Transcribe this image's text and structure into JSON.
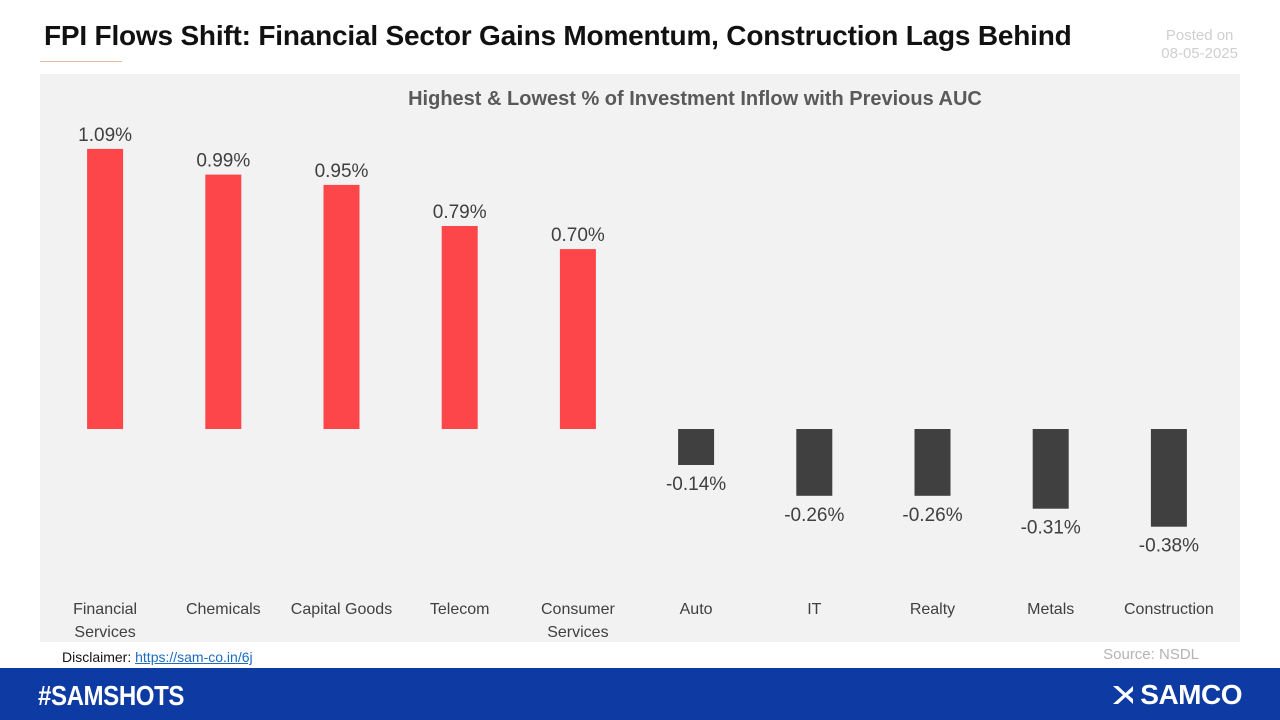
{
  "header": {
    "title": "FPI Flows Shift: Financial Sector Gains Momentum, Construction Lags Behind",
    "posted_label": "Posted on",
    "posted_date": "08-05-2025"
  },
  "chart_data": {
    "type": "bar",
    "title": "Highest & Lowest % of Investment Inflow with Previous AUC",
    "xlabel": "",
    "ylabel": "",
    "categories": [
      [
        "Financial",
        "Services"
      ],
      [
        "Chemicals"
      ],
      [
        "Capital Goods"
      ],
      [
        "Telecom"
      ],
      [
        "Consumer",
        "Services"
      ],
      [
        "Auto"
      ],
      [
        "IT"
      ],
      [
        "Realty"
      ],
      [
        "Metals"
      ],
      [
        "Construction"
      ]
    ],
    "values": [
      1.09,
      0.99,
      0.95,
      0.79,
      0.7,
      -0.14,
      -0.26,
      -0.26,
      -0.31,
      -0.38
    ],
    "data_labels": [
      "1.09%",
      "0.99%",
      "0.95%",
      "0.79%",
      "0.70%",
      "-0.14%",
      "-0.26%",
      "-0.26%",
      "-0.31%",
      "-0.38%"
    ],
    "ylim": [
      -0.6,
      1.15
    ],
    "grid": false,
    "legend": "none",
    "colors": {
      "positive": "#fc4649",
      "negative": "#404040"
    }
  },
  "footer": {
    "disclaimer_label": "Disclaimer:",
    "disclaimer_link": "https://sam-co.in/6j",
    "source": "Source: NSDL",
    "hashtag": "#SAMSHOTS",
    "brand": "SAMCO",
    "brand_icon": "samco-logo-icon",
    "bar_color": "#0d3aa3"
  }
}
